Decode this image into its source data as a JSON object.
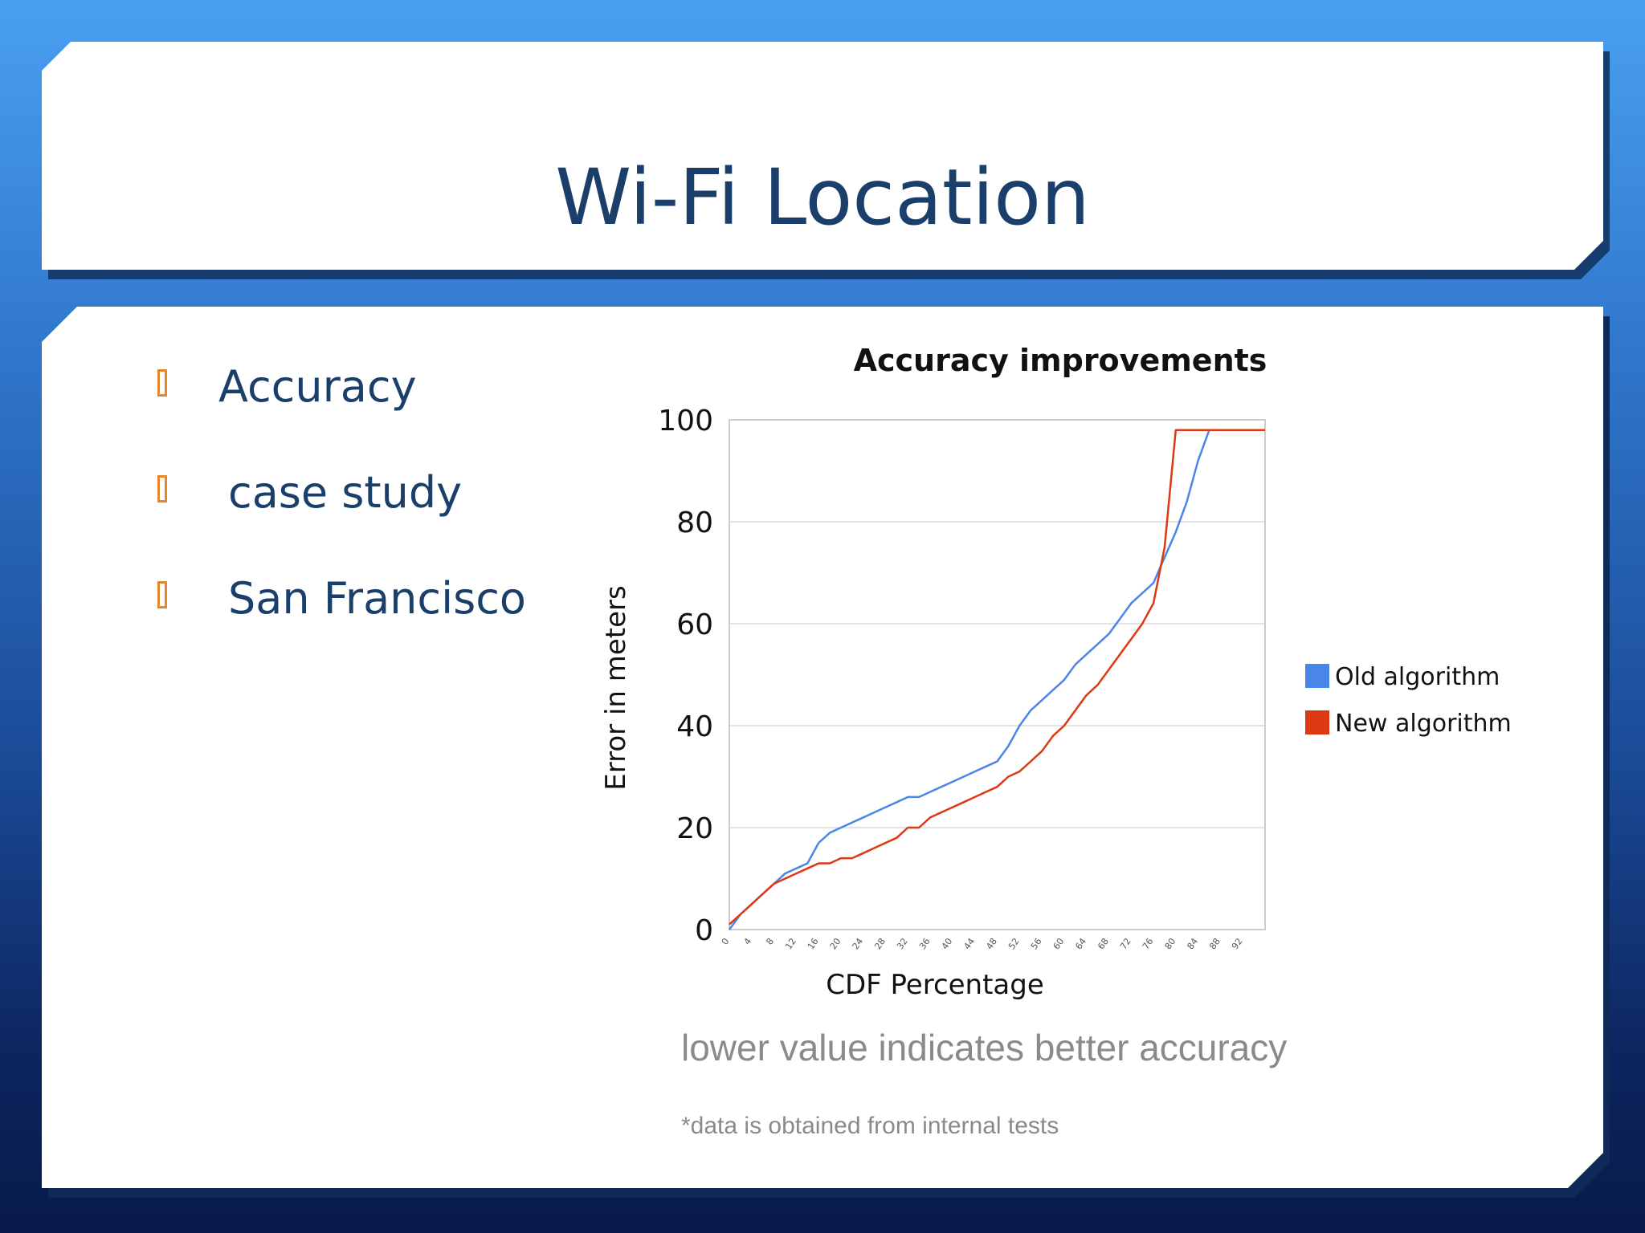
{
  "slide": {
    "title": "Wi-Fi Location",
    "bullets": [
      "Accuracy",
      "case study",
      "San Francisco"
    ],
    "caption": "lower value indicates better accuracy",
    "footnote": "*data is obtained from internal tests"
  },
  "colors": {
    "title_text": "#1b3f6b",
    "bullet_marker": "#e8862a",
    "old_series": "#4a86e8",
    "new_series": "#dc3912"
  },
  "chart_data": {
    "type": "line",
    "title": "Accuracy improvements",
    "xlabel": "CDF Percentage",
    "ylabel": "Error in meters",
    "ylim": [
      0,
      100
    ],
    "xlim": [
      0,
      96
    ],
    "yticks": [
      0,
      20,
      40,
      60,
      80,
      100
    ],
    "xticks": [
      0,
      4,
      8,
      12,
      16,
      20,
      24,
      28,
      32,
      36,
      40,
      44,
      48,
      52,
      56,
      60,
      64,
      68,
      72,
      76,
      80,
      84,
      88,
      92
    ],
    "grid": true,
    "legend_position": "right",
    "x": [
      0,
      2,
      4,
      6,
      8,
      10,
      12,
      14,
      16,
      18,
      20,
      22,
      24,
      26,
      28,
      30,
      32,
      34,
      36,
      38,
      40,
      42,
      44,
      46,
      48,
      50,
      52,
      54,
      56,
      58,
      60,
      62,
      64,
      66,
      68,
      70,
      72,
      74,
      76,
      78,
      80,
      82,
      84,
      86,
      88,
      90,
      92,
      94,
      96
    ],
    "series": [
      {
        "name": "Old algorithm",
        "values": [
          0,
          3,
          5,
          7,
          9,
          11,
          12,
          13,
          17,
          19,
          20,
          21,
          22,
          23,
          24,
          25,
          26,
          26,
          27,
          28,
          29,
          30,
          31,
          32,
          33,
          36,
          40,
          43,
          45,
          47,
          49,
          52,
          54,
          56,
          58,
          61,
          64,
          66,
          68,
          73,
          78,
          84,
          92,
          98,
          98,
          98,
          98,
          98,
          98
        ]
      },
      {
        "name": "New algorithm",
        "values": [
          1,
          3,
          5,
          7,
          9,
          10,
          11,
          12,
          13,
          13,
          14,
          14,
          15,
          16,
          17,
          18,
          20,
          20,
          22,
          23,
          24,
          25,
          26,
          27,
          28,
          30,
          31,
          33,
          35,
          38,
          40,
          43,
          46,
          48,
          51,
          54,
          57,
          60,
          64,
          75,
          98,
          98,
          98,
          98,
          98,
          98,
          98,
          98,
          98
        ]
      }
    ]
  }
}
